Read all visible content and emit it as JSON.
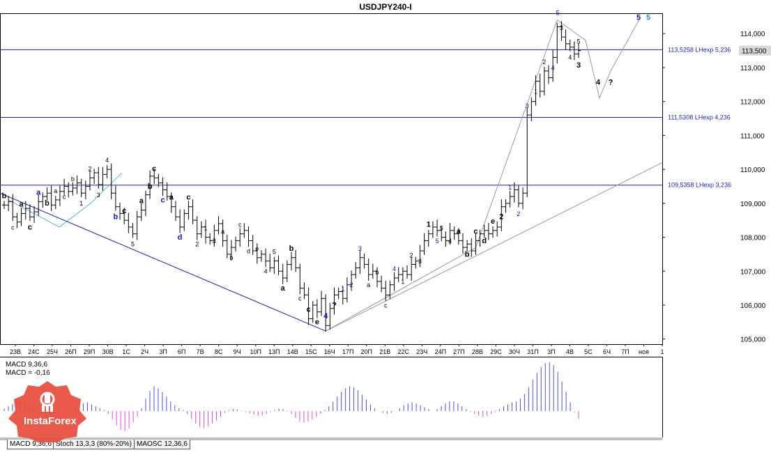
{
  "title": "USDJPY240-I",
  "colors": {
    "background": "#ffffff",
    "grid_line_blue": "#1f1fb5",
    "last_price_box": "#d8d8d8",
    "macd_positive": "#4d4de6",
    "macd_negative": "#d94dd9",
    "wave_blue": "#1010c0",
    "wave_cyan": "#1fa0b0",
    "channel_line": "#2020b0",
    "projection_line": "#9a9a9a",
    "badge_red": "#e74c3c"
  },
  "chart_data": [
    {
      "type": "candlestick",
      "symbol": "USDJPY240-I",
      "ylim": [
        104.85,
        114.6
      ],
      "y_ticks": [
        "105,000",
        "106,000",
        "107,000",
        "108,000",
        "109,000",
        "110,000",
        "111,000",
        "112,000",
        "113,000",
        "114,000"
      ],
      "x_ticks": [
        "23В",
        "24С",
        "25Ч",
        "26П",
        "29П",
        "30В",
        "1С",
        "2Ч",
        "3П",
        "6П",
        "7В",
        "8С",
        "9Ч",
        "10П",
        "13П",
        "14В",
        "15С",
        "16Ч",
        "17П",
        "20П",
        "21В",
        "22С",
        "23Ч",
        "24П",
        "27П",
        "28В",
        "29С",
        "30Ч",
        "31П",
        "3П",
        "4В",
        "5С",
        "6Ч",
        "7П",
        "ноя",
        "1"
      ],
      "last_price_label": "113,500",
      "last_price": 113.5,
      "horizontal_levels": [
        {
          "label": "113,5258 LHexp 5,236",
          "value": 113.5258
        },
        {
          "label": "111,5308 LHexp 4,236",
          "value": 111.5308
        },
        {
          "label": "109,5358 LHexp 3,236",
          "value": 109.5358
        }
      ],
      "price_path_note": "OHLC sequence follows a decline from ~109.3 to ~105.4 (16Ч), a rise to ~108.4, then a sharp rally to ~114.2 and a pullback to ~113.5",
      "close_series": [
        108.95,
        109.05,
        108.6,
        108.45,
        108.7,
        108.85,
        108.6,
        108.75,
        109.05,
        109.2,
        109.3,
        108.95,
        109.1,
        109.35,
        109.5,
        109.35,
        109.45,
        109.6,
        109.3,
        109.5,
        109.75,
        109.9,
        109.55,
        109.85,
        110.0,
        109.3,
        108.9,
        108.7,
        108.5,
        108.3,
        108.1,
        108.6,
        108.8,
        109.25,
        109.8,
        109.75,
        109.6,
        109.4,
        109.2,
        108.9,
        108.6,
        108.3,
        108.7,
        108.9,
        108.5,
        108.1,
        108.3,
        108.0,
        107.9,
        108.2,
        108.4,
        107.9,
        107.5,
        107.7,
        107.9,
        108.1,
        108.2,
        107.9,
        107.6,
        107.4,
        107.5,
        107.3,
        107.1,
        107.3,
        107.0,
        106.8,
        107.2,
        107.4,
        107.1,
        106.5,
        106.3,
        105.6,
        106.0,
        105.8,
        106.2,
        105.4,
        105.9,
        106.3,
        106.4,
        106.2,
        106.6,
        106.9,
        107.1,
        107.4,
        107.2,
        106.9,
        107.0,
        106.7,
        106.5,
        106.3,
        106.6,
        106.8,
        106.9,
        107.0,
        106.9,
        107.2,
        107.3,
        107.6,
        107.9,
        108.1,
        108.3,
        108.2,
        108.0,
        107.9,
        108.2,
        108.1,
        107.9,
        107.7,
        107.8,
        107.6,
        107.9,
        108.1,
        108.2,
        108.1,
        108.2,
        108.3,
        108.9,
        109.0,
        109.2,
        109.4,
        109.0,
        109.3,
        111.6,
        112.0,
        112.6,
        112.3,
        112.9,
        112.7,
        113.3,
        114.2,
        113.9,
        113.7,
        113.6,
        113.4,
        113.5
      ],
      "wave_labels": [
        {
          "text": "b",
          "color": "#000000",
          "bold": true
        },
        {
          "text": "c",
          "color": "#000000"
        },
        {
          "text": "a",
          "color": "#000000",
          "bold": true
        },
        {
          "text": "c",
          "color": "#000000",
          "bold": true
        },
        {
          "text": "a",
          "color": "#1010c0",
          "bold": true
        },
        {
          "text": "b",
          "color": "#000000",
          "bold": true
        },
        {
          "text": "a",
          "color": "#000000"
        },
        {
          "text": "c",
          "color": "#000000"
        },
        {
          "text": "b",
          "color": "#000000"
        },
        {
          "text": "1",
          "color": "#000000"
        },
        {
          "text": "2",
          "color": "#000000"
        },
        {
          "text": "3",
          "color": "#000000"
        },
        {
          "text": "4",
          "color": "#000000"
        },
        {
          "text": "b",
          "color": "#1010c0",
          "bold": true
        },
        {
          "text": "c",
          "color": "#000000",
          "bold": true
        },
        {
          "text": "5",
          "color": "#000000"
        },
        {
          "text": "a",
          "color": "#000000",
          "bold": true
        },
        {
          "text": "b",
          "color": "#000000",
          "bold": true
        },
        {
          "text": "c",
          "color": "#000000",
          "bold": true
        },
        {
          "text": "c",
          "color": "#1010c0",
          "bold": true
        },
        {
          "text": "a",
          "color": "#000000",
          "bold": true
        },
        {
          "text": "d",
          "color": "#1010c0",
          "bold": true
        },
        {
          "text": "c",
          "color": "#000000",
          "bold": true
        },
        {
          "text": "2",
          "color": "#000000"
        },
        {
          "text": "1",
          "color": "#000000"
        },
        {
          "text": "3",
          "color": "#000000"
        },
        {
          "text": "a",
          "color": "#000000"
        },
        {
          "text": "b",
          "color": "#000000"
        },
        {
          "text": "c",
          "color": "#000000"
        },
        {
          "text": "d",
          "color": "#000000"
        },
        {
          "text": "e",
          "color": "#000000"
        },
        {
          "text": "4",
          "color": "#000000"
        },
        {
          "text": "5",
          "color": "#000000"
        },
        {
          "text": "a",
          "color": "#000000",
          "bold": true
        },
        {
          "text": "b",
          "color": "#000000",
          "bold": true
        },
        {
          "text": "c",
          "color": "#000000"
        },
        {
          "text": "c",
          "color": "#000000",
          "bold": true
        },
        {
          "text": "e",
          "color": "#000000",
          "bold": true
        },
        {
          "text": "4",
          "color": "#1010c0",
          "bold": true
        },
        {
          "text": "?",
          "color": "#000000",
          "bold": true
        },
        {
          "text": "1",
          "color": "#1010c0"
        },
        {
          "text": "2",
          "color": "#1010c0"
        },
        {
          "text": "3",
          "color": "#1010c0"
        },
        {
          "text": "a",
          "color": "#000000"
        },
        {
          "text": "b",
          "color": "#000000"
        },
        {
          "text": "c",
          "color": "#000000"
        },
        {
          "text": "4",
          "color": "#1010c0"
        },
        {
          "text": "1",
          "color": "#000000"
        },
        {
          "text": "2",
          "color": "#000000"
        },
        {
          "text": "3",
          "color": "#000000"
        },
        {
          "text": "1",
          "color": "#000000",
          "bold": true
        },
        {
          "text": "5",
          "color": "#1010c0"
        },
        {
          "text": "5",
          "color": "#000000"
        },
        {
          "text": "4",
          "color": "#000000"
        },
        {
          "text": "a",
          "color": "#000000",
          "bold": true
        },
        {
          "text": "b",
          "color": "#000000",
          "bold": true
        },
        {
          "text": "c",
          "color": "#000000",
          "bold": true
        },
        {
          "text": "d",
          "color": "#000000",
          "bold": true
        },
        {
          "text": "e",
          "color": "#000000",
          "bold": true
        },
        {
          "text": "2",
          "color": "#000000",
          "bold": true
        },
        {
          "text": "1",
          "color": "#1010c0"
        },
        {
          "text": "2",
          "color": "#1010c0"
        },
        {
          "text": "3",
          "color": "#1010c0"
        },
        {
          "text": "1",
          "color": "#000000"
        },
        {
          "text": "2",
          "color": "#000000"
        },
        {
          "text": "4",
          "color": "#1010c0"
        },
        {
          "text": "3",
          "color": "#000000"
        },
        {
          "text": "4",
          "color": "#000000"
        },
        {
          "text": "5",
          "color": "#000000"
        },
        {
          "text": "5",
          "color": "#1010c0"
        },
        {
          "text": "3",
          "color": "#000000",
          "bold": true
        },
        {
          "text": "4",
          "color": "#000000",
          "bold": true
        },
        {
          "text": "?",
          "color": "#000000",
          "bold": true
        },
        {
          "text": "5",
          "color": "#1010c0",
          "bold": true
        },
        {
          "text": "5",
          "color": "#1fa0b0",
          "bold": true
        }
      ]
    },
    {
      "type": "bar",
      "name": "MACD",
      "header": [
        "MACD 9,36,6",
        "MACD = -0,16"
      ],
      "values": [
        0.05,
        0.1,
        0.15,
        0.2,
        0.22,
        0.18,
        0.12,
        0.06,
        0.02,
        -0.02,
        -0.06,
        -0.1,
        -0.12,
        -0.1,
        -0.06,
        -0.02,
        0.03,
        0.08,
        0.12,
        0.16,
        0.18,
        0.14,
        0.1,
        0.06,
        0.02,
        -0.06,
        -0.18,
        -0.3,
        -0.4,
        -0.42,
        -0.36,
        -0.24,
        -0.12,
        0.06,
        0.26,
        0.42,
        0.52,
        0.48,
        0.4,
        0.3,
        0.2,
        0.12,
        0.06,
        0.02,
        -0.06,
        -0.16,
        -0.26,
        -0.34,
        -0.36,
        -0.32,
        -0.26,
        -0.2,
        -0.12,
        -0.04,
        0.02,
        0.04,
        0.03,
        0.01,
        -0.02,
        -0.05,
        -0.08,
        -0.1,
        -0.09,
        -0.06,
        -0.02,
        0.02,
        0.05,
        0.04,
        0.01,
        -0.06,
        -0.14,
        -0.22,
        -0.24,
        -0.22,
        -0.18,
        -0.12,
        -0.06,
        0.02,
        0.1,
        0.2,
        0.3,
        0.4,
        0.48,
        0.52,
        0.5,
        0.44,
        0.34,
        0.24,
        0.14,
        0.06,
        0.0,
        -0.04,
        -0.06,
        -0.04,
        0.0,
        0.06,
        0.12,
        0.16,
        0.18,
        0.16,
        0.12,
        0.08,
        0.04,
        0.0,
        0.04,
        0.1,
        0.16,
        0.2,
        0.2,
        0.16,
        0.1,
        0.04,
        -0.02,
        -0.06,
        -0.1,
        -0.12,
        -0.1,
        -0.06,
        -0.02,
        0.04,
        0.1,
        0.14,
        0.18,
        0.2,
        0.26,
        0.36,
        0.5,
        0.66,
        0.8,
        0.92,
        1.0,
        1.02,
        0.96,
        0.82,
        0.62,
        0.4,
        0.18,
        -0.02,
        -0.16
      ]
    }
  ],
  "tabs": [
    {
      "label": "MACD 9,36,6"
    },
    {
      "label": "Stoch 13,3,3 (80%-20%)"
    },
    {
      "label": "MAOSC 12,36,6"
    }
  ],
  "watermark": "InstaForex"
}
